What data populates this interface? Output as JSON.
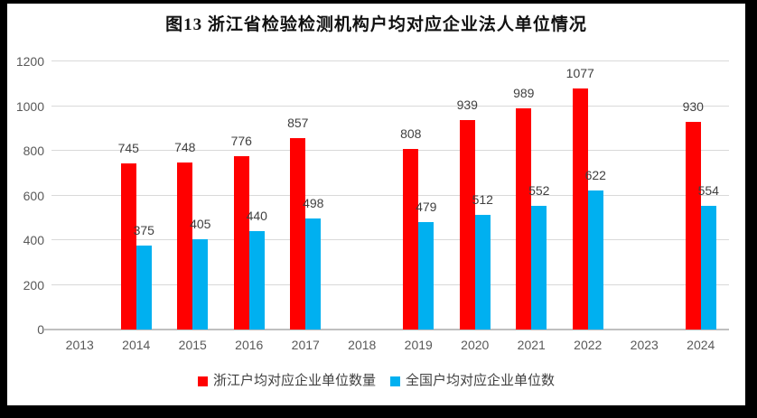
{
  "window": {
    "background": "#000000",
    "chart_background": "#ffffff"
  },
  "chart_data": {
    "type": "bar",
    "title": "图13 浙江省检验检测机构户均对应企业法人单位情况",
    "categories": [
      "2013",
      "2014",
      "2015",
      "2016",
      "2017",
      "2018",
      "2019",
      "2020",
      "2021",
      "2022",
      "2023",
      "2024"
    ],
    "series": [
      {
        "name": "浙江户均对应企业单位数量",
        "color": "#FF0000",
        "values": [
          null,
          745,
          748,
          776,
          857,
          null,
          808,
          939,
          989,
          1077,
          null,
          930
        ]
      },
      {
        "name": "全国户均对应企业单位数",
        "color": "#00B0F0",
        "values": [
          null,
          375,
          405,
          440,
          498,
          null,
          479,
          512,
          552,
          622,
          null,
          554
        ]
      }
    ],
    "xlabel": "",
    "ylabel": "",
    "ylim": [
      0,
      1200
    ],
    "yticks": [
      0,
      200,
      400,
      600,
      800,
      1000,
      1200
    ],
    "grid": true,
    "legend_position": "bottom",
    "colors": {
      "gridline": "#D9D9D9",
      "axis_line": "#BFBFBF",
      "axis_label": "#595959",
      "data_label": "#404040",
      "legend_label": "#404040",
      "title": "#111111"
    }
  }
}
